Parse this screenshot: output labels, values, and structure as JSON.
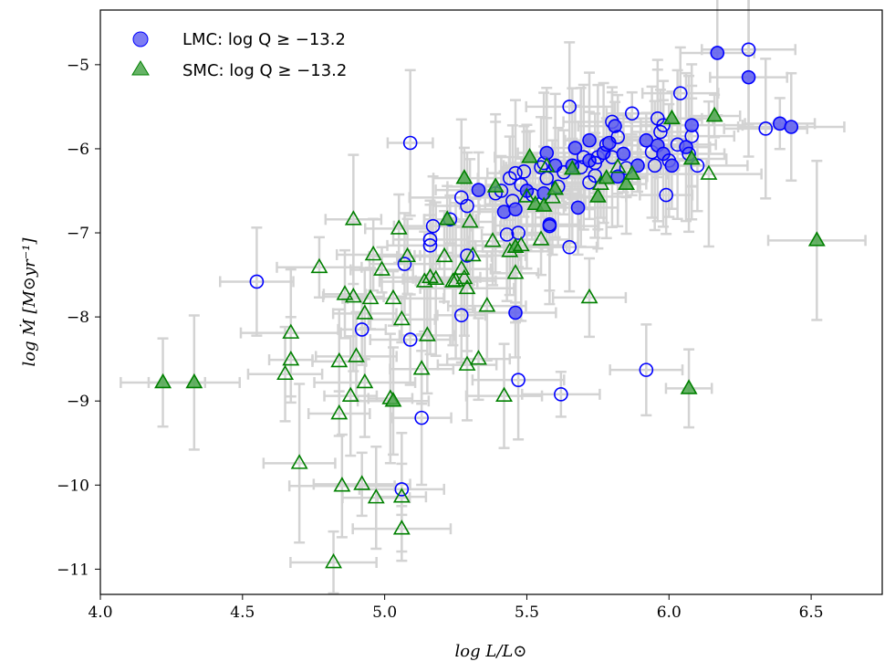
{
  "chart_data": {
    "type": "scatter",
    "xlabel": "log L/L⊙",
    "ylabel": "log Ṁ [M⊙yr⁻¹]",
    "xlim": [
      4.0,
      6.75
    ],
    "ylim": [
      -11.3,
      -4.35
    ],
    "xticks": [
      {
        "value": 4.0,
        "label": "4.0"
      },
      {
        "value": 4.5,
        "label": "4.5"
      },
      {
        "value": 5.0,
        "label": "5.0"
      },
      {
        "value": 5.5,
        "label": "5.5"
      },
      {
        "value": 6.0,
        "label": "6.0"
      },
      {
        "value": 6.5,
        "label": "6.5"
      }
    ],
    "yticks": [
      {
        "value": -5,
        "label": "−5"
      },
      {
        "value": -6,
        "label": "−6"
      },
      {
        "value": -7,
        "label": "−7"
      },
      {
        "value": -8,
        "label": "−8"
      },
      {
        "value": -9,
        "label": "−9"
      },
      {
        "value": -10,
        "label": "−10"
      },
      {
        "value": -11,
        "label": "−11"
      }
    ],
    "grid": false,
    "legend_position": "top-left",
    "error_color": "#d3d3d3",
    "series": [
      {
        "name": "LMC: log Q ≥ −13.2",
        "marker": "circle",
        "color": "#0000ff",
        "fill": "#5c5cf0",
        "points": [
          {
            "x": 4.55,
            "y": -7.58,
            "f": 0
          },
          {
            "x": 4.92,
            "y": -8.15,
            "f": 0
          },
          {
            "x": 5.07,
            "y": -7.37,
            "f": 0
          },
          {
            "x": 5.09,
            "y": -5.93,
            "f": 0
          },
          {
            "x": 5.09,
            "y": -8.27,
            "f": 0
          },
          {
            "x": 5.13,
            "y": -9.2,
            "f": 0
          },
          {
            "x": 5.06,
            "y": -10.05,
            "f": 0
          },
          {
            "x": 5.16,
            "y": -7.08,
            "f": 0
          },
          {
            "x": 5.16,
            "y": -7.15,
            "f": 0
          },
          {
            "x": 5.17,
            "y": -6.92,
            "f": 0
          },
          {
            "x": 5.23,
            "y": -6.84,
            "f": 0
          },
          {
            "x": 5.27,
            "y": -6.58,
            "f": 0
          },
          {
            "x": 5.27,
            "y": -7.98,
            "f": 0
          },
          {
            "x": 5.29,
            "y": -7.27,
            "f": 0
          },
          {
            "x": 5.29,
            "y": -6.68,
            "f": 0
          },
          {
            "x": 5.33,
            "y": -6.49,
            "f": 1
          },
          {
            "x": 5.39,
            "y": -6.53,
            "f": 0
          },
          {
            "x": 5.41,
            "y": -6.5,
            "f": 0
          },
          {
            "x": 5.42,
            "y": -6.75,
            "f": 1
          },
          {
            "x": 5.43,
            "y": -7.02,
            "f": 0
          },
          {
            "x": 5.44,
            "y": -6.35,
            "f": 0
          },
          {
            "x": 5.45,
            "y": -6.62,
            "f": 0
          },
          {
            "x": 5.46,
            "y": -6.29,
            "f": 0
          },
          {
            "x": 5.46,
            "y": -6.72,
            "f": 1
          },
          {
            "x": 5.46,
            "y": -7.95,
            "f": 1
          },
          {
            "x": 5.47,
            "y": -8.75,
            "f": 0
          },
          {
            "x": 5.47,
            "y": -7.0,
            "f": 0
          },
          {
            "x": 5.48,
            "y": -6.43,
            "f": 0
          },
          {
            "x": 5.49,
            "y": -6.27,
            "f": 0
          },
          {
            "x": 5.5,
            "y": -6.5,
            "f": 1
          },
          {
            "x": 5.52,
            "y": -6.55,
            "f": 0
          },
          {
            "x": 5.55,
            "y": -6.22,
            "f": 0
          },
          {
            "x": 5.56,
            "y": -6.17,
            "f": 0
          },
          {
            "x": 5.56,
            "y": -6.53,
            "f": 1
          },
          {
            "x": 5.57,
            "y": -6.05,
            "f": 1
          },
          {
            "x": 5.57,
            "y": -6.35,
            "f": 0
          },
          {
            "x": 5.58,
            "y": -6.9,
            "f": 1
          },
          {
            "x": 5.58,
            "y": -6.92,
            "f": 0
          },
          {
            "x": 5.6,
            "y": -6.2,
            "f": 1
          },
          {
            "x": 5.61,
            "y": -6.45,
            "f": 0
          },
          {
            "x": 5.62,
            "y": -8.92,
            "f": 0
          },
          {
            "x": 5.63,
            "y": -6.28,
            "f": 0
          },
          {
            "x": 5.65,
            "y": -7.17,
            "f": 0
          },
          {
            "x": 5.65,
            "y": -5.5,
            "f": 0
          },
          {
            "x": 5.66,
            "y": -6.2,
            "f": 1
          },
          {
            "x": 5.67,
            "y": -5.99,
            "f": 1
          },
          {
            "x": 5.68,
            "y": -6.7,
            "f": 1
          },
          {
            "x": 5.69,
            "y": -6.22,
            "f": 0
          },
          {
            "x": 5.7,
            "y": -6.1,
            "f": 0
          },
          {
            "x": 5.72,
            "y": -6.14,
            "f": 1
          },
          {
            "x": 5.72,
            "y": -5.9,
            "f": 1
          },
          {
            "x": 5.72,
            "y": -6.4,
            "f": 0
          },
          {
            "x": 5.74,
            "y": -6.17,
            "f": 0
          },
          {
            "x": 5.74,
            "y": -6.32,
            "f": 0
          },
          {
            "x": 5.75,
            "y": -6.1,
            "f": 0
          },
          {
            "x": 5.77,
            "y": -6.05,
            "f": 1
          },
          {
            "x": 5.78,
            "y": -5.95,
            "f": 0
          },
          {
            "x": 5.79,
            "y": -5.93,
            "f": 1
          },
          {
            "x": 5.8,
            "y": -6.1,
            "f": 0
          },
          {
            "x": 5.8,
            "y": -5.68,
            "f": 0
          },
          {
            "x": 5.81,
            "y": -5.73,
            "f": 1
          },
          {
            "x": 5.82,
            "y": -6.33,
            "f": 1
          },
          {
            "x": 5.82,
            "y": -5.86,
            "f": 0
          },
          {
            "x": 5.84,
            "y": -6.06,
            "f": 1
          },
          {
            "x": 5.85,
            "y": -6.23,
            "f": 0
          },
          {
            "x": 5.87,
            "y": -5.58,
            "f": 0
          },
          {
            "x": 5.89,
            "y": -6.2,
            "f": 1
          },
          {
            "x": 5.92,
            "y": -5.9,
            "f": 1
          },
          {
            "x": 5.92,
            "y": -8.63,
            "f": 0
          },
          {
            "x": 5.94,
            "y": -6.04,
            "f": 0
          },
          {
            "x": 5.95,
            "y": -6.2,
            "f": 0
          },
          {
            "x": 5.96,
            "y": -5.96,
            "f": 1
          },
          {
            "x": 5.96,
            "y": -5.64,
            "f": 0
          },
          {
            "x": 5.97,
            "y": -5.8,
            "f": 0
          },
          {
            "x": 5.98,
            "y": -6.06,
            "f": 1
          },
          {
            "x": 5.98,
            "y": -5.72,
            "f": 0
          },
          {
            "x": 5.99,
            "y": -6.55,
            "f": 0
          },
          {
            "x": 6.0,
            "y": -6.14,
            "f": 0
          },
          {
            "x": 6.01,
            "y": -6.2,
            "f": 1
          },
          {
            "x": 6.03,
            "y": -5.95,
            "f": 0
          },
          {
            "x": 6.04,
            "y": -5.34,
            "f": 0
          },
          {
            "x": 6.06,
            "y": -5.98,
            "f": 1
          },
          {
            "x": 6.08,
            "y": -5.85,
            "f": 0
          },
          {
            "x": 6.08,
            "y": -5.72,
            "f": 1
          },
          {
            "x": 6.07,
            "y": -6.06,
            "f": 0
          },
          {
            "x": 6.1,
            "y": -6.2,
            "f": 0
          },
          {
            "x": 6.17,
            "y": -4.86,
            "f": 1
          },
          {
            "x": 6.28,
            "y": -4.82,
            "f": 0
          },
          {
            "x": 6.28,
            "y": -5.15,
            "f": 1
          },
          {
            "x": 6.34,
            "y": -5.76,
            "f": 0
          },
          {
            "x": 6.39,
            "y": -5.7,
            "f": 1
          },
          {
            "x": 6.43,
            "y": -5.74,
            "f": 1
          }
        ]
      },
      {
        "name": "SMC: log Q ≥ −13.2",
        "marker": "triangle",
        "color": "#008000",
        "fill": "#4ca64c",
        "points": [
          {
            "x": 4.22,
            "y": -8.78,
            "f": 1
          },
          {
            "x": 4.33,
            "y": -8.78,
            "f": 1
          },
          {
            "x": 4.65,
            "y": -8.68,
            "f": 0
          },
          {
            "x": 4.67,
            "y": -8.19,
            "f": 0
          },
          {
            "x": 4.67,
            "y": -8.51,
            "f": 0
          },
          {
            "x": 4.7,
            "y": -9.74,
            "f": 0
          },
          {
            "x": 4.77,
            "y": -7.41,
            "f": 0
          },
          {
            "x": 4.82,
            "y": -10.92,
            "f": 0
          },
          {
            "x": 4.84,
            "y": -8.53,
            "f": 0
          },
          {
            "x": 4.84,
            "y": -9.15,
            "f": 0
          },
          {
            "x": 4.85,
            "y": -10.01,
            "f": 0
          },
          {
            "x": 4.86,
            "y": -7.73,
            "f": 0
          },
          {
            "x": 4.88,
            "y": -8.94,
            "f": 0
          },
          {
            "x": 4.89,
            "y": -6.84,
            "f": 0
          },
          {
            "x": 4.89,
            "y": -7.76,
            "f": 0
          },
          {
            "x": 4.9,
            "y": -8.47,
            "f": 0
          },
          {
            "x": 4.92,
            "y": -9.99,
            "f": 0
          },
          {
            "x": 4.93,
            "y": -7.96,
            "f": 0
          },
          {
            "x": 4.93,
            "y": -8.78,
            "f": 0
          },
          {
            "x": 4.95,
            "y": -7.78,
            "f": 0
          },
          {
            "x": 4.96,
            "y": -7.26,
            "f": 0
          },
          {
            "x": 4.97,
            "y": -10.15,
            "f": 0
          },
          {
            "x": 4.99,
            "y": -7.44,
            "f": 0
          },
          {
            "x": 5.02,
            "y": -8.97,
            "f": 0
          },
          {
            "x": 5.03,
            "y": -9.0,
            "f": 1
          },
          {
            "x": 5.03,
            "y": -7.78,
            "f": 0
          },
          {
            "x": 5.05,
            "y": -6.95,
            "f": 0
          },
          {
            "x": 5.06,
            "y": -8.03,
            "f": 0
          },
          {
            "x": 5.06,
            "y": -10.14,
            "f": 0
          },
          {
            "x": 5.06,
            "y": -10.52,
            "f": 0
          },
          {
            "x": 5.08,
            "y": -7.28,
            "f": 0
          },
          {
            "x": 5.13,
            "y": -8.62,
            "f": 0
          },
          {
            "x": 5.14,
            "y": -7.58,
            "f": 0
          },
          {
            "x": 5.15,
            "y": -8.22,
            "f": 0
          },
          {
            "x": 5.16,
            "y": -7.53,
            "f": 0
          },
          {
            "x": 5.18,
            "y": -7.55,
            "f": 0
          },
          {
            "x": 5.21,
            "y": -7.28,
            "f": 0
          },
          {
            "x": 5.22,
            "y": -6.84,
            "f": 1
          },
          {
            "x": 5.24,
            "y": -7.58,
            "f": 0
          },
          {
            "x": 5.25,
            "y": -7.57,
            "f": 0
          },
          {
            "x": 5.27,
            "y": -7.43,
            "f": 0
          },
          {
            "x": 5.28,
            "y": -6.35,
            "f": 1
          },
          {
            "x": 5.28,
            "y": -7.54,
            "f": 0
          },
          {
            "x": 5.29,
            "y": -7.66,
            "f": 0
          },
          {
            "x": 5.29,
            "y": -8.57,
            "f": 0
          },
          {
            "x": 5.3,
            "y": -6.87,
            "f": 0
          },
          {
            "x": 5.31,
            "y": -7.27,
            "f": 0
          },
          {
            "x": 5.33,
            "y": -8.5,
            "f": 0
          },
          {
            "x": 5.36,
            "y": -7.87,
            "f": 0
          },
          {
            "x": 5.38,
            "y": -7.1,
            "f": 0
          },
          {
            "x": 5.39,
            "y": -6.45,
            "f": 1
          },
          {
            "x": 5.42,
            "y": -8.94,
            "f": 0
          },
          {
            "x": 5.44,
            "y": -7.22,
            "f": 0
          },
          {
            "x": 5.46,
            "y": -7.48,
            "f": 0
          },
          {
            "x": 5.46,
            "y": -7.17,
            "f": 1
          },
          {
            "x": 5.48,
            "y": -7.15,
            "f": 0
          },
          {
            "x": 5.5,
            "y": -6.57,
            "f": 0
          },
          {
            "x": 5.51,
            "y": -6.1,
            "f": 1
          },
          {
            "x": 5.53,
            "y": -6.66,
            "f": 1
          },
          {
            "x": 5.55,
            "y": -7.08,
            "f": 0
          },
          {
            "x": 5.56,
            "y": -6.68,
            "f": 1
          },
          {
            "x": 5.57,
            "y": -6.21,
            "f": 0
          },
          {
            "x": 5.59,
            "y": -6.58,
            "f": 0
          },
          {
            "x": 5.6,
            "y": -6.48,
            "f": 1
          },
          {
            "x": 5.66,
            "y": -6.24,
            "f": 1
          },
          {
            "x": 5.72,
            "y": -7.77,
            "f": 0
          },
          {
            "x": 5.75,
            "y": -6.57,
            "f": 1
          },
          {
            "x": 5.76,
            "y": -6.42,
            "f": 0
          },
          {
            "x": 5.78,
            "y": -6.35,
            "f": 1
          },
          {
            "x": 5.82,
            "y": -6.22,
            "f": 0
          },
          {
            "x": 5.85,
            "y": -6.42,
            "f": 1
          },
          {
            "x": 5.87,
            "y": -6.3,
            "f": 1
          },
          {
            "x": 6.01,
            "y": -5.64,
            "f": 1
          },
          {
            "x": 6.07,
            "y": -8.85,
            "f": 1
          },
          {
            "x": 6.08,
            "y": -6.12,
            "f": 1
          },
          {
            "x": 6.14,
            "y": -6.3,
            "f": 0
          },
          {
            "x": 6.16,
            "y": -5.61,
            "f": 1
          },
          {
            "x": 6.52,
            "y": -7.09,
            "f": 1
          }
        ]
      }
    ]
  }
}
